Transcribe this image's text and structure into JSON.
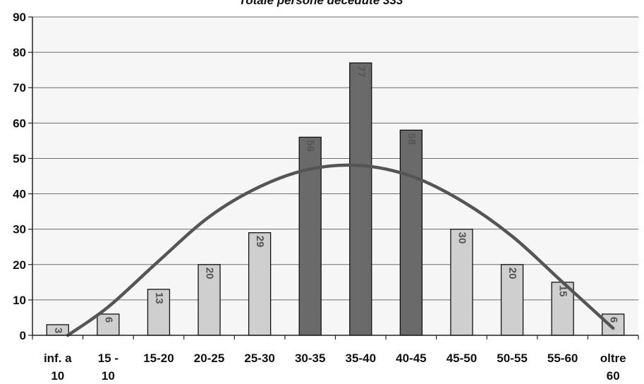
{
  "chart_data": {
    "type": "bar",
    "title": "Totale persone decedute 333",
    "xlabel": "",
    "ylabel": "",
    "ylim": [
      0,
      90
    ],
    "yticks": [
      0,
      10,
      20,
      30,
      40,
      50,
      60,
      70,
      80,
      90
    ],
    "grid": true,
    "categories": [
      [
        "inf. a",
        "10"
      ],
      [
        "15 -",
        "10"
      ],
      [
        "15-20"
      ],
      [
        "20-25"
      ],
      [
        "25-30"
      ],
      [
        "30-35"
      ],
      [
        "35-40"
      ],
      [
        "40-45"
      ],
      [
        "45-50"
      ],
      [
        "50-55"
      ],
      [
        "55-60"
      ],
      [
        "oltre",
        "60"
      ]
    ],
    "values": [
      3,
      6,
      13,
      20,
      29,
      56,
      77,
      58,
      30,
      20,
      15,
      6
    ],
    "value_labels": [
      "3",
      "6",
      "13",
      "20",
      "29",
      "56",
      "77",
      "58",
      "30",
      "20",
      "15",
      "6"
    ],
    "highlight": [
      false,
      false,
      false,
      false,
      false,
      true,
      true,
      true,
      false,
      false,
      false,
      false
    ],
    "trendline": {
      "type": "polynomial",
      "x": [
        1.2,
        2,
        3,
        4,
        5,
        6,
        7,
        8,
        9,
        10,
        11,
        12
      ],
      "y": [
        0,
        8,
        21,
        33.5,
        42,
        47,
        48,
        45,
        38,
        28,
        15,
        2
      ]
    },
    "colors": {
      "bar": "#cfcfcf",
      "bar_highlight": "#6a6a6a",
      "bar_stroke": "#111111",
      "trendline": "#555555",
      "grid": "#6e6e6e"
    }
  }
}
